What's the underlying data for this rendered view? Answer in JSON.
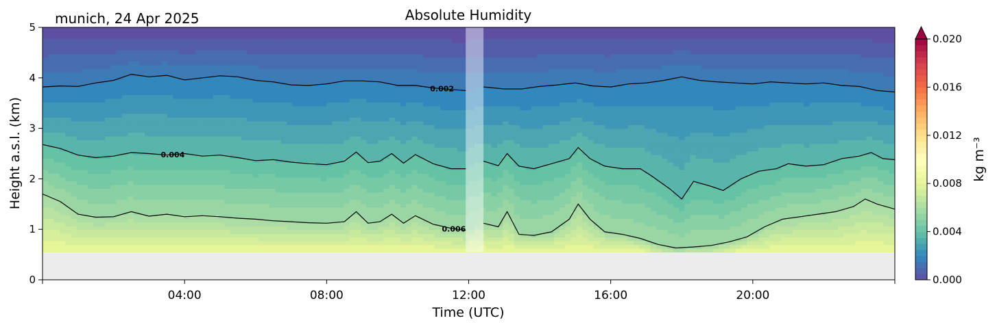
{
  "chart_data": {
    "type": "heatmap",
    "title": "Absolute Humidity",
    "subtitle": "munich, 24 Apr 2025",
    "xlabel": "Time (UTC)",
    "ylabel": "Height a.s.l. (km)",
    "xlim": [
      "00:00",
      "24:00"
    ],
    "ylim": [
      0,
      5
    ],
    "xticks": [
      "04:00",
      "08:00",
      "12:00",
      "16:00",
      "20:00"
    ],
    "yticks": [
      "0",
      "1",
      "2",
      "3",
      "4",
      "5"
    ],
    "colorbar": {
      "label": "kg m⁻³",
      "range": [
        0,
        0.02
      ],
      "ticks": [
        "0.000",
        "0.004",
        "0.008",
        "0.012",
        "0.016",
        "0.020"
      ],
      "extend": "max",
      "colormap": "Spectral_r"
    },
    "data_floor_km": 0.55,
    "missing_data_interval": [
      "11:55",
      "12:25"
    ],
    "contours": [
      {
        "label": "0.002",
        "label_time": "11:15",
        "points": [
          [
            "00:00",
            3.82
          ],
          [
            "00:30",
            3.84
          ],
          [
            "01:00",
            3.83
          ],
          [
            "01:30",
            3.9
          ],
          [
            "02:00",
            3.95
          ],
          [
            "02:30",
            4.07
          ],
          [
            "03:00",
            4.02
          ],
          [
            "03:30",
            4.05
          ],
          [
            "04:00",
            3.96
          ],
          [
            "04:30",
            4.0
          ],
          [
            "05:00",
            4.04
          ],
          [
            "05:30",
            4.02
          ],
          [
            "06:00",
            3.95
          ],
          [
            "06:30",
            3.92
          ],
          [
            "07:00",
            3.86
          ],
          [
            "07:30",
            3.85
          ],
          [
            "08:00",
            3.88
          ],
          [
            "08:30",
            3.94
          ],
          [
            "09:00",
            3.94
          ],
          [
            "09:30",
            3.92
          ],
          [
            "10:00",
            3.85
          ],
          [
            "10:30",
            3.85
          ],
          [
            "11:00",
            3.8
          ],
          [
            "11:30",
            3.77
          ],
          [
            "11:55",
            3.75
          ],
          [
            "12:25",
            3.82
          ],
          [
            "13:00",
            3.78
          ],
          [
            "13:30",
            3.78
          ],
          [
            "14:00",
            3.83
          ],
          [
            "14:30",
            3.86
          ],
          [
            "15:00",
            3.9
          ],
          [
            "15:30",
            3.84
          ],
          [
            "16:00",
            3.82
          ],
          [
            "16:30",
            3.88
          ],
          [
            "17:00",
            3.9
          ],
          [
            "17:30",
            3.95
          ],
          [
            "18:00",
            4.02
          ],
          [
            "18:30",
            3.95
          ],
          [
            "19:00",
            3.92
          ],
          [
            "19:30",
            3.9
          ],
          [
            "20:00",
            3.88
          ],
          [
            "20:30",
            3.92
          ],
          [
            "21:00",
            3.9
          ],
          [
            "21:30",
            3.88
          ],
          [
            "22:00",
            3.9
          ],
          [
            "22:30",
            3.85
          ],
          [
            "23:00",
            3.83
          ],
          [
            "23:30",
            3.75
          ],
          [
            "24:00",
            3.72
          ]
        ]
      },
      {
        "label": "0.004",
        "label_time": "03:40",
        "points": [
          [
            "00:00",
            2.68
          ],
          [
            "00:30",
            2.6
          ],
          [
            "01:00",
            2.47
          ],
          [
            "01:30",
            2.42
          ],
          [
            "02:00",
            2.45
          ],
          [
            "02:30",
            2.52
          ],
          [
            "03:00",
            2.5
          ],
          [
            "03:30",
            2.47
          ],
          [
            "04:00",
            2.5
          ],
          [
            "04:30",
            2.45
          ],
          [
            "05:00",
            2.47
          ],
          [
            "05:30",
            2.42
          ],
          [
            "06:00",
            2.36
          ],
          [
            "06:30",
            2.38
          ],
          [
            "07:00",
            2.33
          ],
          [
            "07:30",
            2.3
          ],
          [
            "08:00",
            2.28
          ],
          [
            "08:30",
            2.35
          ],
          [
            "08:50",
            2.53
          ],
          [
            "09:10",
            2.32
          ],
          [
            "09:30",
            2.35
          ],
          [
            "09:50",
            2.5
          ],
          [
            "10:10",
            2.31
          ],
          [
            "10:30",
            2.48
          ],
          [
            "11:00",
            2.3
          ],
          [
            "11:30",
            2.2
          ],
          [
            "11:55",
            2.2
          ],
          [
            "12:25",
            2.35
          ],
          [
            "12:50",
            2.26
          ],
          [
            "13:05",
            2.5
          ],
          [
            "13:25",
            2.25
          ],
          [
            "13:50",
            2.2
          ],
          [
            "14:20",
            2.3
          ],
          [
            "14:50",
            2.4
          ],
          [
            "15:05",
            2.62
          ],
          [
            "15:25",
            2.4
          ],
          [
            "15:50",
            2.25
          ],
          [
            "16:20",
            2.2
          ],
          [
            "16:50",
            2.2
          ],
          [
            "17:10",
            2.05
          ],
          [
            "17:40",
            1.8
          ],
          [
            "18:00",
            1.6
          ],
          [
            "18:20",
            1.95
          ],
          [
            "18:50",
            1.85
          ],
          [
            "19:10",
            1.77
          ],
          [
            "19:40",
            2.0
          ],
          [
            "20:10",
            2.15
          ],
          [
            "20:40",
            2.2
          ],
          [
            "21:00",
            2.3
          ],
          [
            "21:30",
            2.25
          ],
          [
            "22:00",
            2.28
          ],
          [
            "22:30",
            2.4
          ],
          [
            "23:00",
            2.45
          ],
          [
            "23:20",
            2.52
          ],
          [
            "23:40",
            2.4
          ],
          [
            "24:00",
            2.38
          ]
        ]
      },
      {
        "label": "0.006",
        "label_time": "11:35",
        "points": [
          [
            "00:00",
            1.7
          ],
          [
            "00:30",
            1.55
          ],
          [
            "01:00",
            1.3
          ],
          [
            "01:30",
            1.24
          ],
          [
            "02:00",
            1.25
          ],
          [
            "02:30",
            1.35
          ],
          [
            "03:00",
            1.26
          ],
          [
            "03:30",
            1.3
          ],
          [
            "04:00",
            1.25
          ],
          [
            "04:30",
            1.27
          ],
          [
            "05:00",
            1.25
          ],
          [
            "05:30",
            1.22
          ],
          [
            "06:00",
            1.2
          ],
          [
            "06:30",
            1.17
          ],
          [
            "07:00",
            1.15
          ],
          [
            "07:30",
            1.13
          ],
          [
            "08:00",
            1.12
          ],
          [
            "08:30",
            1.15
          ],
          [
            "08:50",
            1.35
          ],
          [
            "09:10",
            1.12
          ],
          [
            "09:30",
            1.15
          ],
          [
            "09:50",
            1.3
          ],
          [
            "10:10",
            1.12
          ],
          [
            "10:30",
            1.27
          ],
          [
            "11:00",
            1.1
          ],
          [
            "11:30",
            1.02
          ],
          [
            "11:55",
            0.98
          ],
          [
            "12:25",
            1.12
          ],
          [
            "12:50",
            1.05
          ],
          [
            "13:05",
            1.35
          ],
          [
            "13:25",
            0.9
          ],
          [
            "13:50",
            0.88
          ],
          [
            "14:20",
            0.95
          ],
          [
            "14:50",
            1.2
          ],
          [
            "15:05",
            1.5
          ],
          [
            "15:25",
            1.2
          ],
          [
            "15:50",
            0.95
          ],
          [
            "16:20",
            0.9
          ],
          [
            "16:50",
            0.82
          ],
          [
            "17:20",
            0.7
          ],
          [
            "17:50",
            0.63
          ],
          [
            "18:20",
            0.65
          ],
          [
            "18:50",
            0.68
          ],
          [
            "19:20",
            0.75
          ],
          [
            "19:50",
            0.85
          ],
          [
            "20:20",
            1.05
          ],
          [
            "20:50",
            1.2
          ],
          [
            "21:20",
            1.25
          ],
          [
            "21:50",
            1.3
          ],
          [
            "22:20",
            1.35
          ],
          [
            "22:50",
            1.45
          ],
          [
            "23:10",
            1.6
          ],
          [
            "23:30",
            1.5
          ],
          [
            "24:00",
            1.4
          ]
        ]
      }
    ]
  }
}
